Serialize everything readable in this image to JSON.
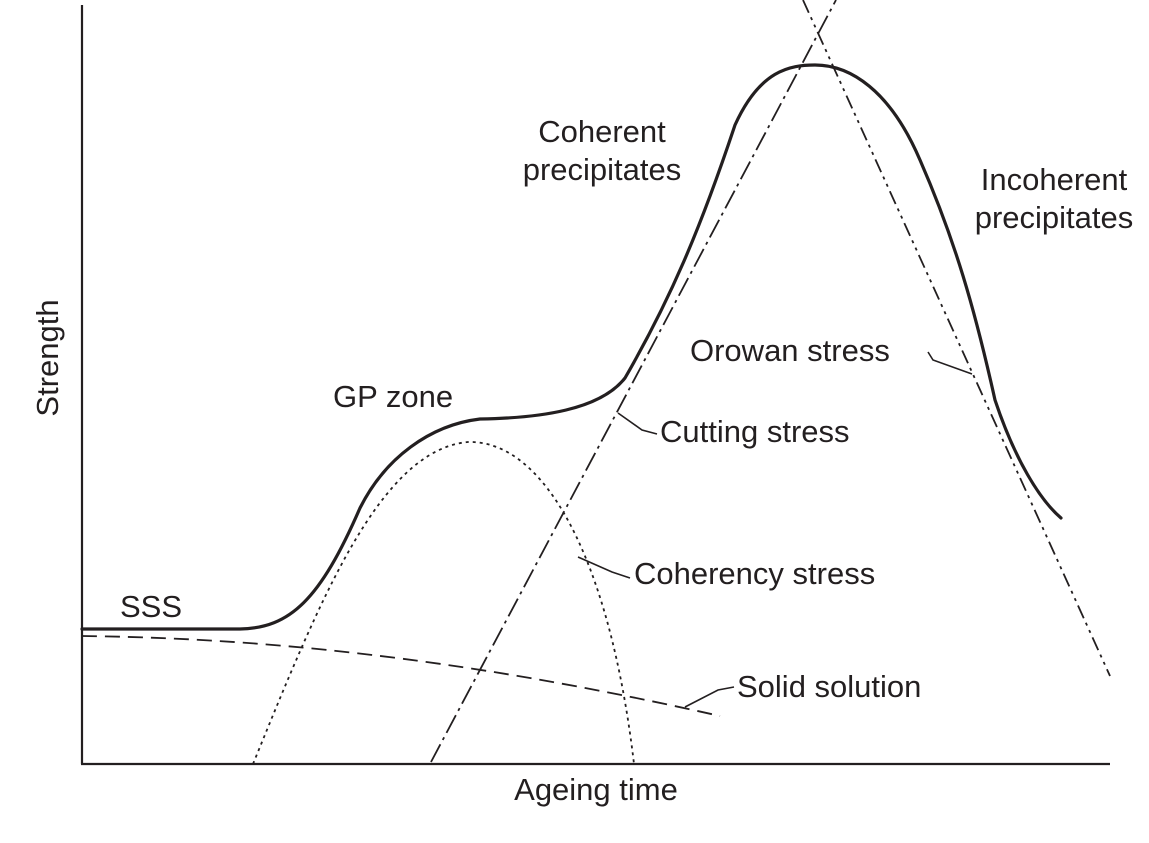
{
  "axes": {
    "y_label": "Strength",
    "x_label": "Ageing time"
  },
  "labels": {
    "coherent_line1": "Coherent",
    "coherent_line2": "precipitates",
    "incoherent_line1": "Incoherent",
    "incoherent_line2": "precipitates",
    "orowan": "Orowan stress",
    "gp_zone": "GP zone",
    "cutting": "Cutting stress",
    "coherency": "Coherency stress",
    "sss": "SSS",
    "solid_solution": "Solid solution"
  },
  "colors": {
    "ink": "#231f20",
    "background": "#ffffff"
  }
}
